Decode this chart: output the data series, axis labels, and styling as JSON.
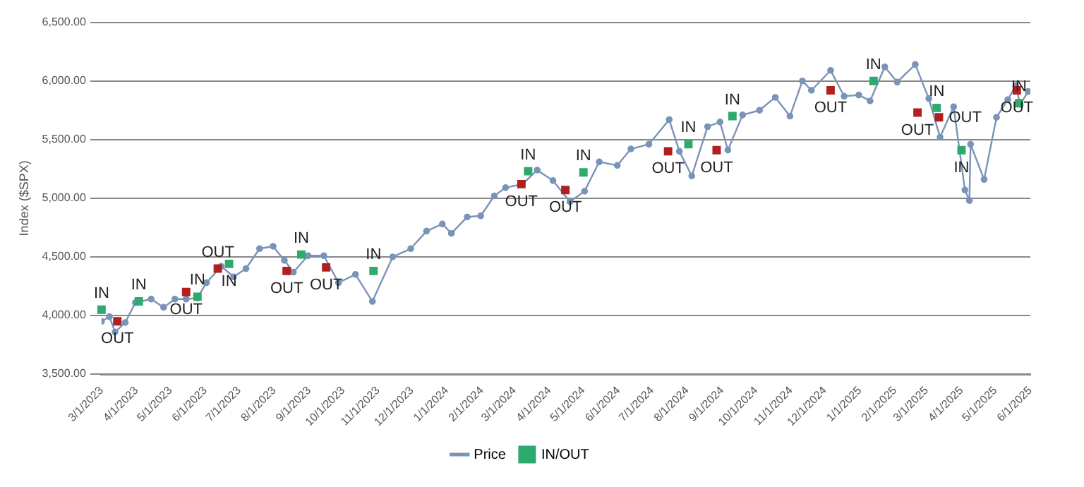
{
  "chart_data": {
    "type": "line",
    "ylabel": "Index ($SPX)",
    "xlim": [
      "2023-03-01",
      "2025-06-01"
    ],
    "xticks": [
      {
        "value": "2023-03-01",
        "label": "3/1/2023"
      },
      {
        "value": "2023-04-01",
        "label": "4/1/2023"
      },
      {
        "value": "2023-05-01",
        "label": "5/1/2023"
      },
      {
        "value": "2023-06-01",
        "label": "6/1/2023"
      },
      {
        "value": "2023-07-01",
        "label": "7/1/2023"
      },
      {
        "value": "2023-08-01",
        "label": "8/1/2023"
      },
      {
        "value": "2023-09-01",
        "label": "9/1/2023"
      },
      {
        "value": "2023-10-01",
        "label": "10/1/2023"
      },
      {
        "value": "2023-11-01",
        "label": "11/1/2023"
      },
      {
        "value": "2023-12-01",
        "label": "12/1/2023"
      },
      {
        "value": "2024-01-01",
        "label": "1/1/2024"
      },
      {
        "value": "2024-02-01",
        "label": "2/1/2024"
      },
      {
        "value": "2024-03-01",
        "label": "3/1/2024"
      },
      {
        "value": "2024-04-01",
        "label": "4/1/2024"
      },
      {
        "value": "2024-05-01",
        "label": "5/1/2024"
      },
      {
        "value": "2024-06-01",
        "label": "6/1/2024"
      },
      {
        "value": "2024-07-01",
        "label": "7/1/2024"
      },
      {
        "value": "2024-08-01",
        "label": "8/1/2024"
      },
      {
        "value": "2024-09-01",
        "label": "9/1/2024"
      },
      {
        "value": "2024-10-01",
        "label": "10/1/2024"
      },
      {
        "value": "2024-11-01",
        "label": "11/1/2024"
      },
      {
        "value": "2024-12-01",
        "label": "12/1/2024"
      },
      {
        "value": "2025-01-01",
        "label": "1/1/2025"
      },
      {
        "value": "2025-02-01",
        "label": "2/1/2025"
      },
      {
        "value": "2025-03-01",
        "label": "3/1/2025"
      },
      {
        "value": "2025-04-01",
        "label": "4/1/2025"
      },
      {
        "value": "2025-05-01",
        "label": "5/1/2025"
      },
      {
        "value": "2025-06-01",
        "label": "6/1/2025"
      }
    ],
    "ylim": [
      3500,
      6500
    ],
    "yticks": [
      {
        "value": 3500,
        "label": "3,500.00"
      },
      {
        "value": 4000,
        "label": "4,000.00"
      },
      {
        "value": 4500,
        "label": "4,500.00"
      },
      {
        "value": 5000,
        "label": "5,000.00"
      },
      {
        "value": 5500,
        "label": "5,500.00"
      },
      {
        "value": 6000,
        "label": "6,000.00"
      },
      {
        "value": 6500,
        "label": "6,500.00"
      }
    ],
    "grid": "y",
    "legend": "bottom",
    "series": [
      {
        "name": "Price",
        "color": "#7a93b8",
        "marker": "circle",
        "x": [
          "2023-03-01",
          "2023-03-08",
          "2023-03-13",
          "2023-03-22",
          "2023-03-31",
          "2023-04-14",
          "2023-04-25",
          "2023-05-05",
          "2023-05-15",
          "2023-05-25",
          "2023-06-02",
          "2023-06-15",
          "2023-06-26",
          "2023-07-07",
          "2023-07-19",
          "2023-07-31",
          "2023-08-10",
          "2023-08-18",
          "2023-08-31",
          "2023-09-14",
          "2023-09-27",
          "2023-10-12",
          "2023-10-27",
          "2023-11-14",
          "2023-11-30",
          "2023-12-14",
          "2023-12-28",
          "2024-01-05",
          "2024-01-19",
          "2024-01-31",
          "2024-02-12",
          "2024-02-22",
          "2024-03-08",
          "2024-03-21",
          "2024-04-04",
          "2024-04-19",
          "2024-05-02",
          "2024-05-15",
          "2024-05-31",
          "2024-06-12",
          "2024-06-28",
          "2024-07-16",
          "2024-07-25",
          "2024-08-05",
          "2024-08-19",
          "2024-08-30",
          "2024-09-06",
          "2024-09-19",
          "2024-10-04",
          "2024-10-18",
          "2024-10-31",
          "2024-11-11",
          "2024-11-19",
          "2024-12-06",
          "2024-12-18",
          "2024-12-31",
          "2025-01-10",
          "2025-01-23",
          "2025-02-03",
          "2025-02-19",
          "2025-03-03",
          "2025-03-13",
          "2025-03-25",
          "2025-04-04",
          "2025-04-08",
          "2025-04-09",
          "2025-04-21",
          "2025-05-02",
          "2025-05-12",
          "2025-05-19",
          "2025-05-23",
          "2025-05-30"
        ],
        "values": [
          3950,
          3990,
          3860,
          3940,
          4110,
          4140,
          4070,
          4140,
          4140,
          4150,
          4280,
          4420,
          4330,
          4400,
          4570,
          4590,
          4470,
          4370,
          4510,
          4510,
          4280,
          4350,
          4120,
          4500,
          4570,
          4720,
          4780,
          4700,
          4840,
          4850,
          5020,
          5090,
          5120,
          5240,
          5150,
          4970,
          5060,
          5310,
          5280,
          5420,
          5460,
          5670,
          5400,
          5190,
          5610,
          5650,
          5410,
          5710,
          5750,
          5860,
          5700,
          6000,
          5920,
          6090,
          5870,
          5880,
          5830,
          6120,
          5990,
          6140,
          5850,
          5520,
          5780,
          5070,
          4980,
          5460,
          5160,
          5690,
          5840,
          5960,
          5800,
          5910
        ]
      },
      {
        "name": "IN/OUT",
        "type": "scatter",
        "colors": [
          "#2eaa6e",
          "#b02020",
          "#2eaa6e",
          "#b02020",
          "#2eaa6e",
          "#b02020",
          "#2eaa6e",
          "#b02020",
          "#2eaa6e",
          "#b02020",
          "#2eaa6e",
          "#b02020",
          "#2eaa6e",
          "#b02020",
          "#2eaa6e",
          "#b02020",
          "#2eaa6e",
          "#b02020",
          "#2eaa6e",
          "#b02020",
          "#2eaa6e",
          "#b02020",
          "#2eaa6e",
          "#b02020",
          "#2eaa6e",
          "#b02020",
          "#2eaa6e"
        ],
        "x": [
          "2023-03-01",
          "2023-03-15",
          "2023-04-03",
          "2023-05-15",
          "2023-05-25",
          "2023-06-12",
          "2023-06-22",
          "2023-08-12",
          "2023-08-25",
          "2023-09-16",
          "2023-10-28",
          "2024-03-07",
          "2024-03-13",
          "2024-04-15",
          "2024-05-01",
          "2024-07-15",
          "2024-08-02",
          "2024-08-27",
          "2024-09-10",
          "2024-12-06",
          "2025-01-13",
          "2025-02-21",
          "2025-03-10",
          "2025-03-12",
          "2025-04-01",
          "2025-05-20",
          "2025-05-22"
        ],
        "marker": "square",
        "values": [
          4050,
          3950,
          4120,
          4200,
          4160,
          4400,
          4440,
          4380,
          4520,
          4410,
          4380,
          5120,
          5230,
          5070,
          5220,
          5400,
          5460,
          5410,
          5700,
          5920,
          6000,
          5730,
          5770,
          5690,
          5410,
          5920,
          5810
        ],
        "value_labels": [
          "IN",
          "OUT",
          "IN",
          "OUT",
          "IN",
          "OUT",
          "IN",
          "OUT",
          "IN",
          "OUT",
          "IN",
          "OUT",
          "IN",
          "OUT",
          "IN",
          "OUT",
          "IN",
          "OUT",
          "IN",
          "OUT",
          "IN",
          "OUT",
          "IN",
          "OUT",
          "IN",
          "OUT",
          "IN"
        ]
      }
    ]
  }
}
